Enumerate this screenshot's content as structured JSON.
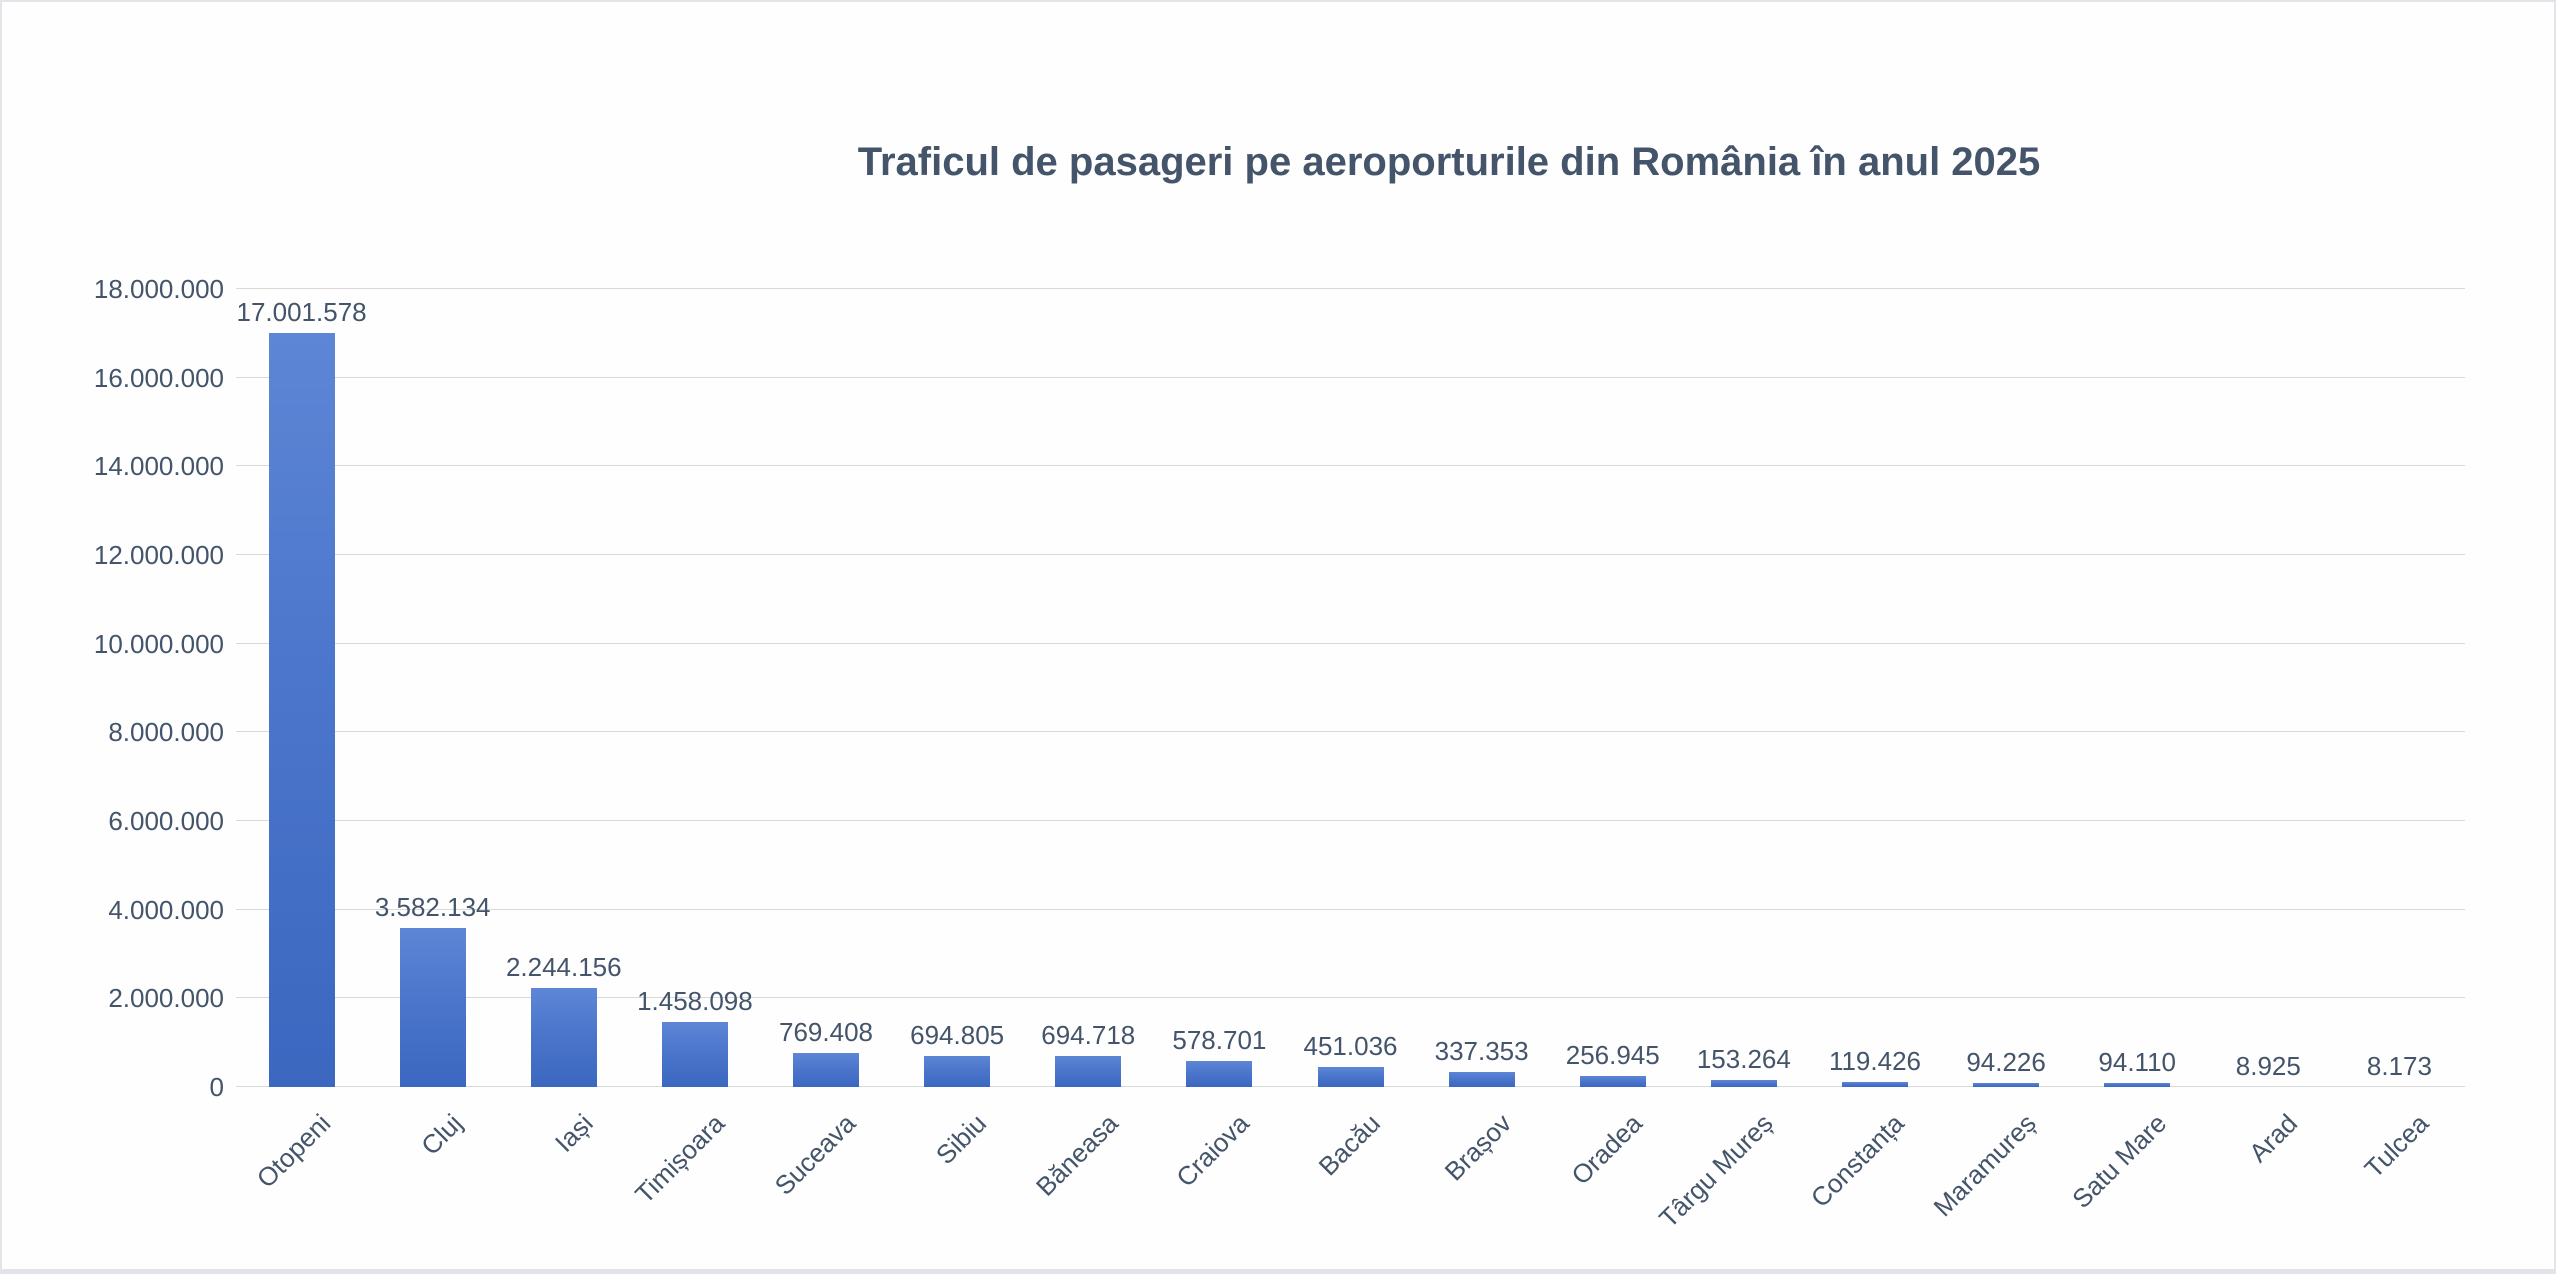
{
  "chart_data": {
    "type": "bar",
    "title": "Traficul de pasageri pe aeroporturile din România în anul 2025",
    "categories": [
      "Otopeni",
      "Cluj",
      "Iași",
      "Timișoara",
      "Suceava",
      "Sibiu",
      "Băneasa",
      "Craiova",
      "Bacău",
      "Brașov",
      "Oradea",
      "Târgu Mureș",
      "Constanța",
      "Maramureș",
      "Satu Mare",
      "Arad",
      "Tulcea"
    ],
    "values": [
      17001578,
      3582134,
      2244156,
      1458098,
      769408,
      694805,
      694718,
      578701,
      451036,
      337353,
      256945,
      153264,
      119426,
      94226,
      94110,
      8925,
      8173
    ],
    "value_labels": [
      "17.001.578",
      "3.582.134",
      "2.244.156",
      "1.458.098",
      "769.408",
      "694.805",
      "694.718",
      "578.701",
      "451.036",
      "337.353",
      "256.945",
      "153.264",
      "119.426",
      "94.226",
      "94.110",
      "8.925",
      "8.173"
    ],
    "xlabel": "",
    "ylabel": "",
    "ylim": [
      0,
      18000000
    ],
    "ytick_step": 2000000,
    "ytick_labels": [
      "0",
      "2.000.000",
      "4.000.000",
      "6.000.000",
      "8.000.000",
      "10.000.000",
      "12.000.000",
      "14.000.000",
      "16.000.000",
      "18.000.000"
    ],
    "grid": "horizontal-on",
    "legend": "none",
    "bar_color": "#4472c4",
    "bar_gradient_top": "#5e86d6",
    "bar_gradient_bottom": "#3c67c0",
    "text_color": "#44546a",
    "gridline_color": "#d9d9d9",
    "background_color": "#fdfefd"
  }
}
